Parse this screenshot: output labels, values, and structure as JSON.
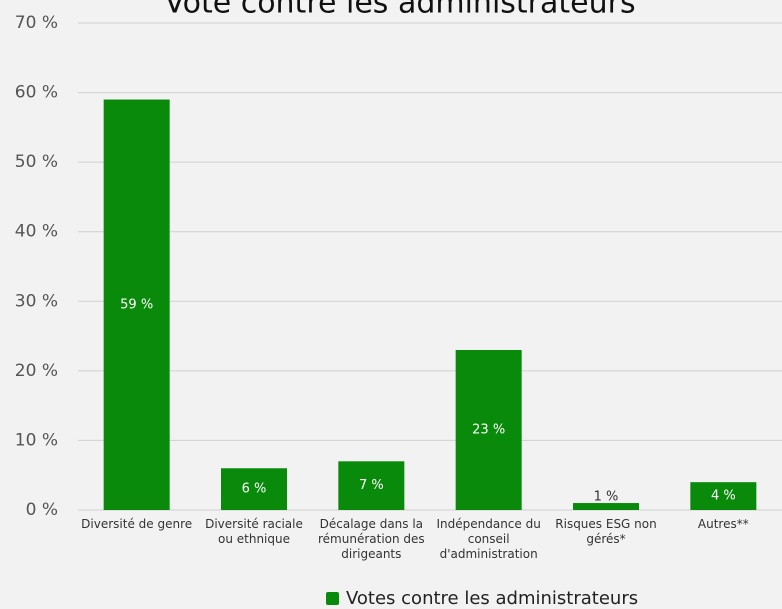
{
  "chart_data": {
    "type": "bar",
    "title": "Vote contre les administrateurs",
    "categories": [
      "Diversité de genre",
      "Diversité raciale ou ethnique",
      "Décalage dans la rémunération des dirigeants",
      "Indépendance du conseil d'administration",
      "Risques ESG non gérés*",
      "Autres**"
    ],
    "series": [
      {
        "name": "Votes contre les administrateurs",
        "color": "#0a8a0a",
        "values": [
          59,
          6,
          7,
          23,
          1,
          4
        ],
        "value_labels": [
          "59 %",
          "6 %",
          "7 %",
          "23 %",
          "1 %",
          "4 %"
        ]
      }
    ],
    "ylim": [
      0,
      70
    ],
    "yticks": [
      {
        "value": 0,
        "label": "0 %"
      },
      {
        "value": 10,
        "label": "10 %"
      },
      {
        "value": 20,
        "label": "20 %"
      },
      {
        "value": 30,
        "label": "30 %"
      },
      {
        "value": 40,
        "label": "40 %"
      },
      {
        "value": 50,
        "label": "50 %"
      },
      {
        "value": 60,
        "label": "60 %"
      },
      {
        "value": 70,
        "label": "70 %"
      }
    ],
    "grid": true,
    "legend": "bottom"
  }
}
